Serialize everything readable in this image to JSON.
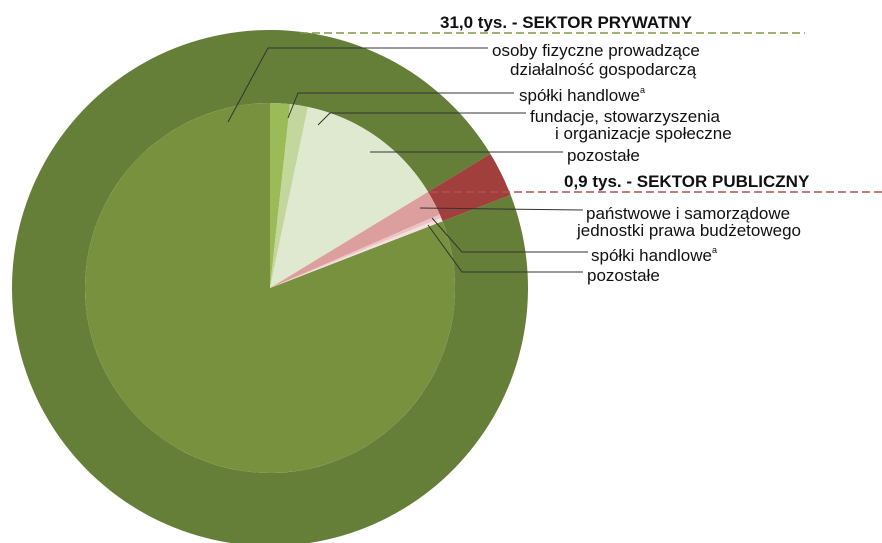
{
  "chart_data": {
    "type": "pie",
    "outer": {
      "categories": [
        "31,0 tys. - SEKTOR PRYWATNY",
        "0,9 tys. - SEKTOR PUBLICZNY"
      ],
      "values": [
        31.0,
        0.9
      ],
      "colors": [
        "#657f39",
        "#a13f3d"
      ],
      "line_colors": [
        "#7b9a45",
        "#b4504e"
      ]
    },
    "inner": {
      "categories": [
        [
          "osoby fizyczne prowadzące",
          "działalność gospodarczą"
        ],
        [
          "spółki handlowe"
        ],
        [
          "fundacje, stowarzyszenia",
          "i organizacje społeczne"
        ],
        [
          "pozostałe"
        ],
        [
          "państwowe i samorządowe",
          "jednostki prawa budżetowego"
        ],
        [
          "spółki handlowe"
        ],
        [
          "pozostałe"
        ]
      ],
      "notes": [
        null,
        "a",
        null,
        null,
        null,
        "a",
        null
      ],
      "values": [
        25.8,
        0.55,
        0.5,
        4.15,
        0.7,
        0.1,
        0.1
      ],
      "colors": [
        "#78913f",
        "#9bbb59",
        "#c3d69b",
        "#dfe9cf",
        "#dc9f9e",
        "#ebc4c3",
        "#f5e0df"
      ]
    }
  }
}
